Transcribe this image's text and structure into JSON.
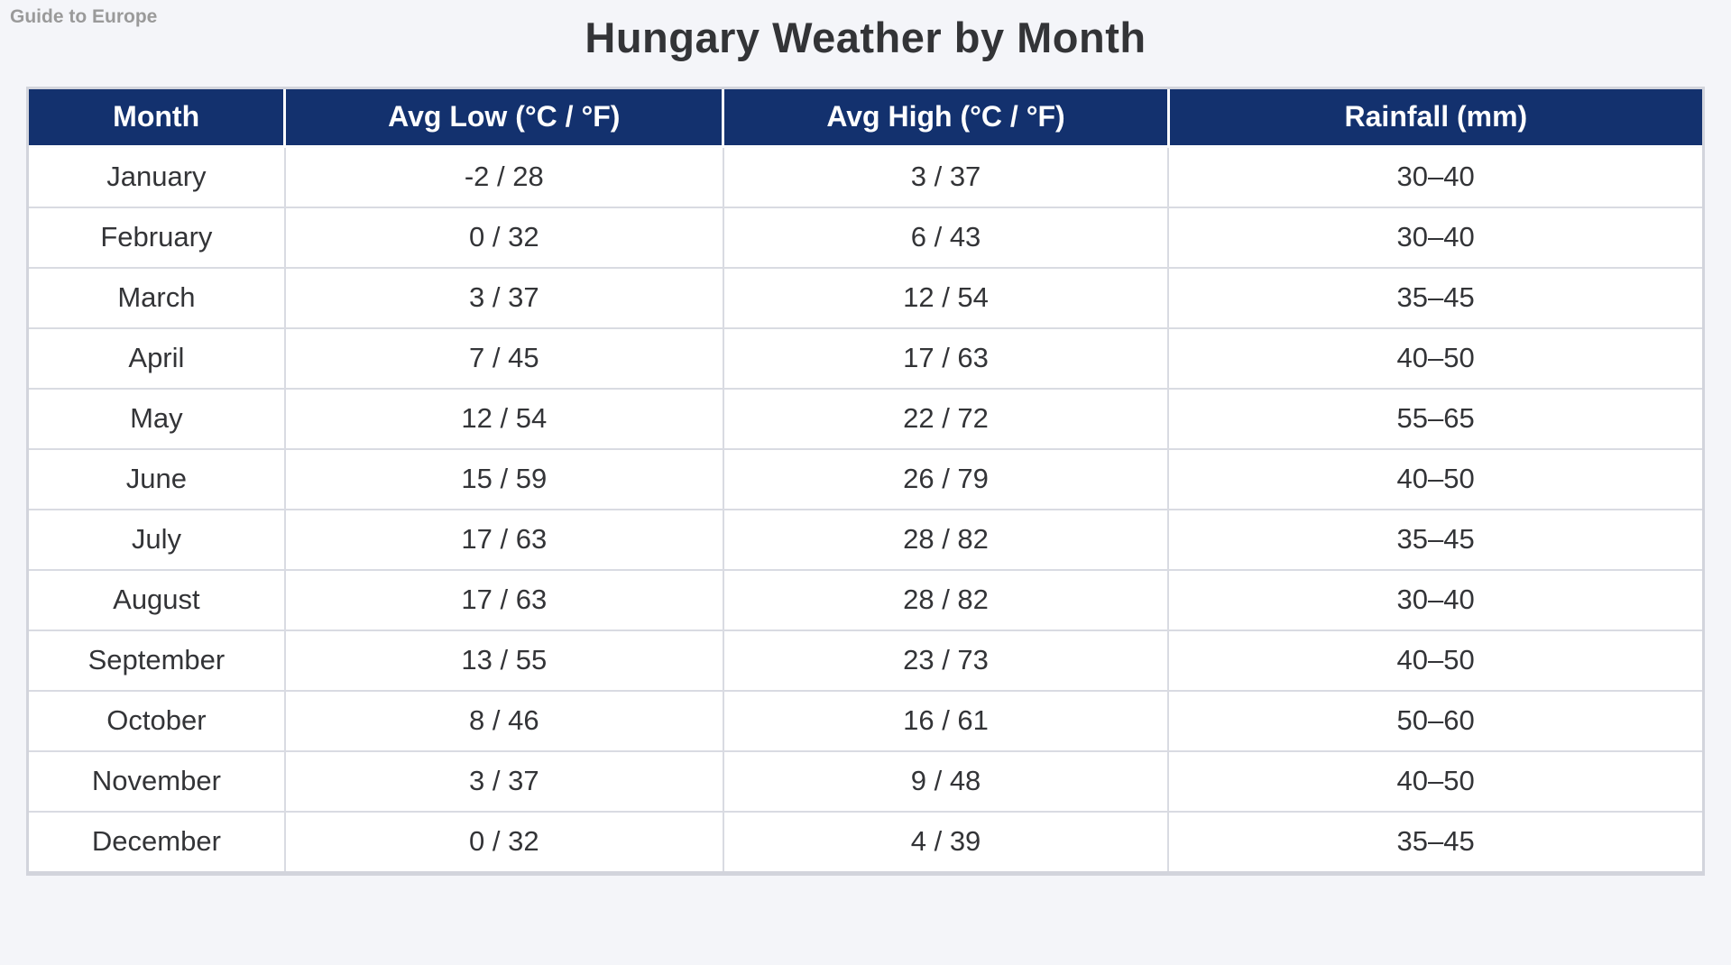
{
  "brand": "Guide to Europe",
  "title": "Hungary Weather by Month",
  "colors": {
    "page_background": "#f4f5f9",
    "header_background": "#13316e",
    "header_text": "#ffffff",
    "cell_text": "#333437",
    "cell_border": "#d9dbe2",
    "outer_border": "#d2d4dc",
    "brand_text": "#9a9a9a"
  },
  "table": {
    "columns": [
      "Month",
      "Avg Low (°C / °F)",
      "Avg High (°C / °F)",
      "Rainfall (mm)"
    ],
    "rows": [
      [
        "January",
        "-2 / 28",
        "3 / 37",
        "30–40"
      ],
      [
        "February",
        "0 / 32",
        "6 / 43",
        "30–40"
      ],
      [
        "March",
        "3 / 37",
        "12 / 54",
        "35–45"
      ],
      [
        "April",
        "7 / 45",
        "17 / 63",
        "40–50"
      ],
      [
        "May",
        "12 / 54",
        "22 / 72",
        "55–65"
      ],
      [
        "June",
        "15 / 59",
        "26 / 79",
        "40–50"
      ],
      [
        "July",
        "17 / 63",
        "28 / 82",
        "35–45"
      ],
      [
        "August",
        "17 / 63",
        "28 / 82",
        "30–40"
      ],
      [
        "September",
        "13 / 55",
        "23 / 73",
        "40–50"
      ],
      [
        "October",
        "8 / 46",
        "16 / 61",
        "50–60"
      ],
      [
        "November",
        "3 / 37",
        "9 / 48",
        "40–50"
      ],
      [
        "December",
        "0 / 32",
        "4 / 39",
        "35–45"
      ]
    ]
  },
  "chart_data": {
    "type": "table",
    "title": "Hungary Weather by Month",
    "columns": [
      "Month",
      "Avg Low (°C / °F)",
      "Avg High (°C / °F)",
      "Rainfall (mm)"
    ],
    "categories": [
      "January",
      "February",
      "March",
      "April",
      "May",
      "June",
      "July",
      "August",
      "September",
      "October",
      "November",
      "December"
    ],
    "series": [
      {
        "name": "Avg Low (°C)",
        "values": [
          -2,
          0,
          3,
          7,
          12,
          15,
          17,
          17,
          13,
          8,
          3,
          0
        ]
      },
      {
        "name": "Avg Low (°F)",
        "values": [
          28,
          32,
          37,
          45,
          54,
          59,
          63,
          63,
          55,
          46,
          37,
          32
        ]
      },
      {
        "name": "Avg High (°C)",
        "values": [
          3,
          6,
          12,
          17,
          22,
          26,
          28,
          28,
          23,
          16,
          9,
          4
        ]
      },
      {
        "name": "Avg High (°F)",
        "values": [
          37,
          43,
          54,
          63,
          72,
          79,
          82,
          82,
          73,
          61,
          48,
          39
        ]
      },
      {
        "name": "Rainfall (mm)",
        "values": [
          "30–40",
          "30–40",
          "35–45",
          "40–50",
          "55–65",
          "40–50",
          "35–45",
          "30–40",
          "40–50",
          "50–60",
          "40–50",
          "35–45"
        ]
      }
    ]
  }
}
